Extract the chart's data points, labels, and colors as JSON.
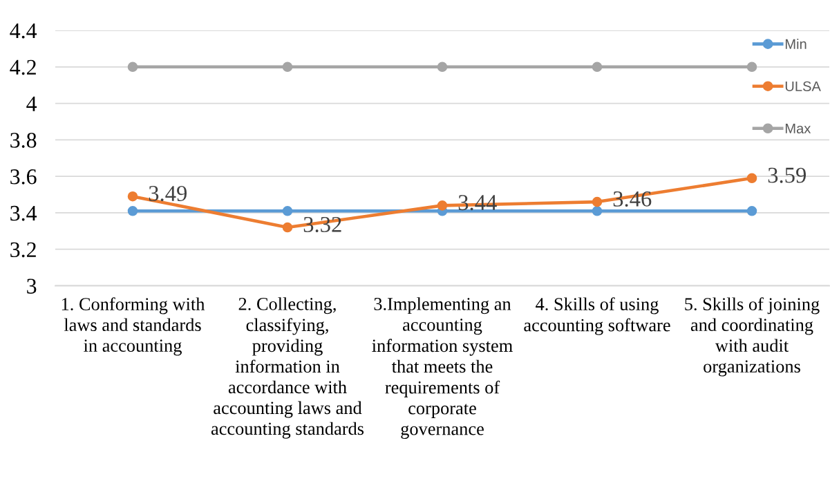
{
  "chart_data": {
    "type": "line",
    "categories": [
      "1. Conforming with laws and standards in accounting",
      "2. Collecting, classifying, providing information in accordance with accounting laws and accounting standards",
      "3.Implementing an accounting information system that meets the requirements of corporate governance",
      "4. Skills of using accounting software",
      "5. Skills of joining and coordinating with audit organizations"
    ],
    "series": [
      {
        "name": "Min",
        "color": "#5b9bd5",
        "values": [
          3.41,
          3.41,
          3.41,
          3.41,
          3.41
        ]
      },
      {
        "name": "ULSA",
        "color": "#ed7d31",
        "values": [
          3.49,
          3.32,
          3.44,
          3.46,
          3.59
        ],
        "value_labels": [
          "3.49",
          "3.32",
          "3.44",
          "3.46",
          "3.59"
        ]
      },
      {
        "name": "Max",
        "color": "#a5a5a5",
        "values": [
          4.2,
          4.2,
          4.2,
          4.2,
          4.2
        ]
      }
    ],
    "ylim": [
      3,
      4.4
    ],
    "yticks": [
      3,
      3.2,
      3.4,
      3.6,
      3.8,
      4,
      4.2,
      4.4
    ],
    "grid": "y",
    "legend": "top right",
    "marker": "circle",
    "line_style": "solid"
  }
}
